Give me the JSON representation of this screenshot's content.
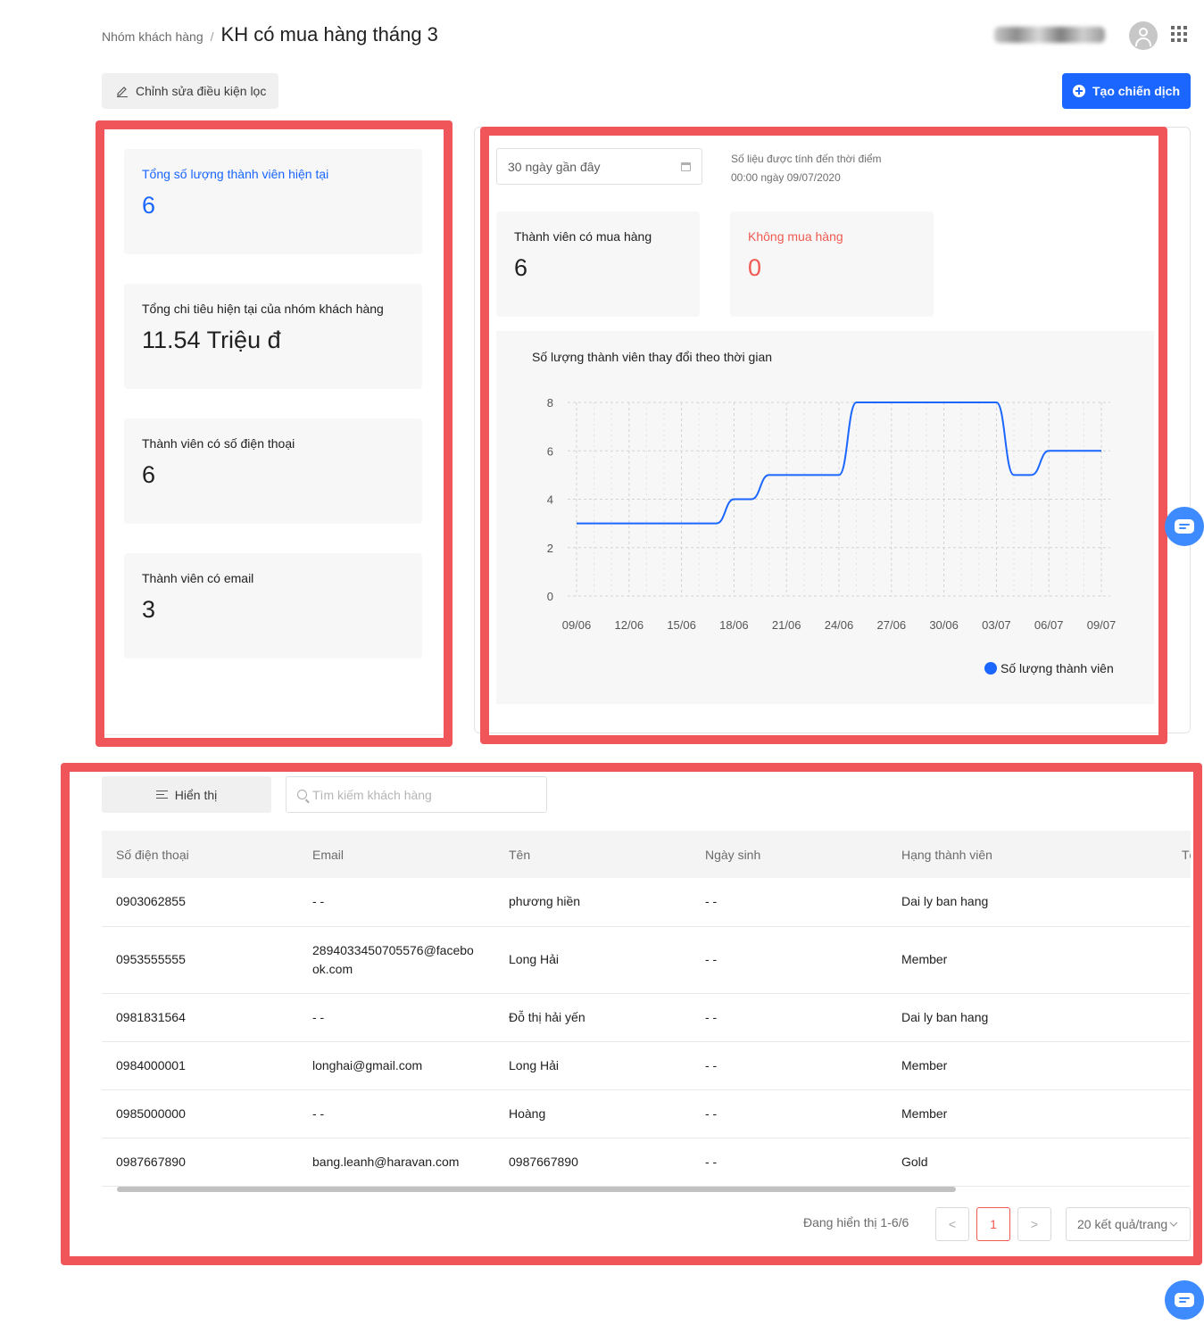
{
  "header": {
    "breadcrumb_parent": "Nhóm khách hàng",
    "separator": "/",
    "title": "KH có mua hàng tháng 3",
    "edit_filter_label": "Chỉnh sửa điều kiện lọc",
    "create_campaign_label": "Tạo chiến dịch"
  },
  "stats": [
    {
      "label": "Tổng số lượng thành viên hiện tại",
      "value": "6"
    },
    {
      "label": "Tổng chi tiêu hiện tại của nhóm khách hàng",
      "value": "11.54 Triệu đ"
    },
    {
      "label": "Thành viên có số điện thoại",
      "value": "6"
    },
    {
      "label": "Thành viên có email",
      "value": "3"
    }
  ],
  "right_panel": {
    "date_range": "30 ngày gần đây",
    "as_of_line1": "Số liệu được tính đến thời điểm",
    "as_of_line2": "00:00 ngày 09/07/2020",
    "purchased_label": "Thành viên có mua hàng",
    "purchased_value": "6",
    "not_purchased_label": "Không mua hàng",
    "not_purchased_value": "0"
  },
  "chart_data": {
    "type": "line",
    "title": "Số lượng thành viên thay đổi theo thời gian",
    "x_ticks": [
      "09/06",
      "12/06",
      "15/06",
      "18/06",
      "21/06",
      "24/06",
      "27/06",
      "30/06",
      "03/07",
      "06/07",
      "09/07"
    ],
    "y_ticks": [
      0,
      2,
      4,
      6,
      8
    ],
    "ylim": [
      0,
      8
    ],
    "grid": true,
    "legend_position": "bottom-right",
    "series": [
      {
        "name": "Số lượng thành viên",
        "color": "#1a66ff",
        "points": [
          [
            "09/06",
            3
          ],
          [
            "10/06",
            3
          ],
          [
            "11/06",
            3
          ],
          [
            "12/06",
            3
          ],
          [
            "13/06",
            3
          ],
          [
            "14/06",
            3
          ],
          [
            "15/06",
            3
          ],
          [
            "16/06",
            3
          ],
          [
            "17/06",
            3
          ],
          [
            "18/06",
            4
          ],
          [
            "19/06",
            4
          ],
          [
            "20/06",
            5
          ],
          [
            "21/06",
            5
          ],
          [
            "22/06",
            5
          ],
          [
            "23/06",
            5
          ],
          [
            "24/06",
            5
          ],
          [
            "25/06",
            8
          ],
          [
            "26/06",
            8
          ],
          [
            "27/06",
            8
          ],
          [
            "28/06",
            8
          ],
          [
            "29/06",
            8
          ],
          [
            "30/06",
            8
          ],
          [
            "01/07",
            8
          ],
          [
            "02/07",
            8
          ],
          [
            "03/07",
            8
          ],
          [
            "04/07",
            5
          ],
          [
            "05/07",
            5
          ],
          [
            "06/07",
            6
          ],
          [
            "07/07",
            6
          ],
          [
            "08/07",
            6
          ],
          [
            "09/07",
            6
          ]
        ]
      }
    ]
  },
  "table": {
    "display_button": "Hiển thị",
    "search_placeholder": "Tìm kiếm khách hàng",
    "columns": [
      "Số điện thoại",
      "Email",
      "Tên",
      "Ngày sinh",
      "Hạng thành viên",
      "Tổ"
    ],
    "rows": [
      [
        "0903062855",
        "- -",
        "phương hiền",
        "- -",
        "Dai ly ban hang",
        ""
      ],
      [
        "0953555555",
        "2894033450705576@facebook.com",
        "Long Hải",
        "- -",
        "Member",
        ""
      ],
      [
        "0981831564",
        "- -",
        "Đỗ thị hải yến",
        "- -",
        "Dai ly ban hang",
        ""
      ],
      [
        "0984000001",
        "longhai@gmail.com",
        "Long Hải",
        "- -",
        "Member",
        ""
      ],
      [
        "0985000000",
        "- -",
        "Hoàng",
        "- -",
        "Member",
        ""
      ],
      [
        "0987667890",
        "bang.leanh@haravan.com",
        "0987667890",
        "- -",
        "Gold",
        ""
      ]
    ]
  },
  "pagination": {
    "info": "Đang hiển thị 1-6/6",
    "prev": "<",
    "current": "1",
    "next": ">",
    "page_size": "20 kết quả/trang"
  },
  "icons": [
    "pencil-icon",
    "plus-circle-icon",
    "calendar-icon",
    "menu-lines-icon",
    "search-icon",
    "chevron-down-icon",
    "chat-icon",
    "apps-grid-icon",
    "avatar-icon"
  ]
}
